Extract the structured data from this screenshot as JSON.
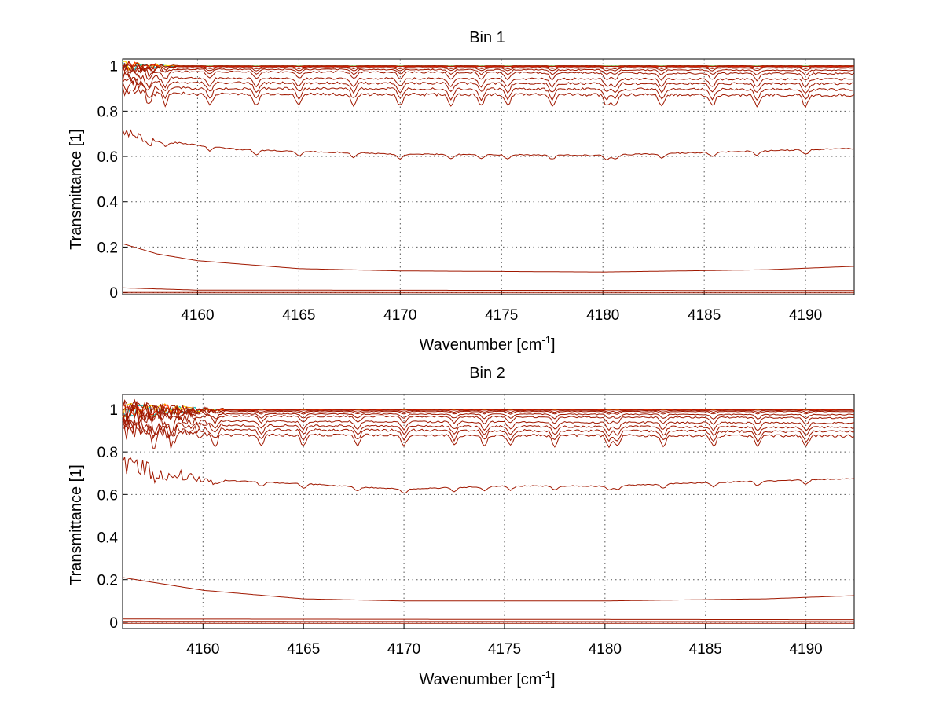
{
  "chart_data": [
    {
      "type": "line",
      "title": "Bin 1",
      "xlabel": "Wavenumber [cm",
      "xlabel_sup": "-1",
      "xlabel_end": "]",
      "ylabel": "Transmittance [1]",
      "xlim": [
        4156.3,
        4192.4
      ],
      "ylim": [
        -0.01,
        1.03
      ],
      "xticks": [
        4160,
        4165,
        4170,
        4175,
        4180,
        4185,
        4190
      ],
      "yticks": [
        0,
        0.2,
        0.4,
        0.6,
        0.8,
        1
      ],
      "ytick_labels": [
        "0",
        "0.2",
        "0.4",
        "0.6",
        "0.8",
        "1"
      ],
      "grid": true,
      "series_color": "#a01800",
      "accent_colors": [
        "#ff9900",
        "#00bfbf",
        "#ffd000",
        "#ff2000"
      ],
      "series": [
        {
          "base": [
            [
              4156.3,
              1.0
            ],
            [
              4192.4,
              1.0
            ]
          ],
          "dip": 0.004
        },
        {
          "base": [
            [
              4156.3,
              0.995
            ],
            [
              4192.4,
              0.995
            ]
          ],
          "dip": 0.008
        },
        {
          "base": [
            [
              4156.3,
              0.99
            ],
            [
              4192.4,
              0.99
            ]
          ],
          "dip": 0.012
        },
        {
          "base": [
            [
              4156.3,
              0.985
            ],
            [
              4192.4,
              0.98
            ]
          ],
          "dip": 0.02
        },
        {
          "base": [
            [
              4156.3,
              0.975
            ],
            [
              4192.4,
              0.965
            ]
          ],
          "dip": 0.03
        },
        {
          "base": [
            [
              4156.3,
              0.95
            ],
            [
              4160,
              0.945
            ],
            [
              4192.4,
              0.94
            ]
          ],
          "dip": 0.035
        },
        {
          "base": [
            [
              4156.3,
              0.93
            ],
            [
              4160,
              0.925
            ],
            [
              4192.4,
              0.92
            ]
          ],
          "dip": 0.04
        },
        {
          "base": [
            [
              4156.3,
              0.91
            ],
            [
              4160,
              0.9
            ],
            [
              4192.4,
              0.895
            ]
          ],
          "dip": 0.045
        },
        {
          "base": [
            [
              4156.3,
              0.89
            ],
            [
              4160,
              0.875
            ],
            [
              4192.4,
              0.87
            ]
          ],
          "dip": 0.05
        },
        {
          "base": [
            [
              4156.3,
              0.7
            ],
            [
              4158,
              0.67
            ],
            [
              4162,
              0.63
            ],
            [
              4170,
              0.61
            ],
            [
              4180,
              0.605
            ],
            [
              4188,
              0.625
            ],
            [
              4192.4,
              0.635
            ]
          ],
          "dip": 0.02
        },
        {
          "base": [
            [
              4156.3,
              0.215
            ],
            [
              4158,
              0.17
            ],
            [
              4160,
              0.14
            ],
            [
              4165,
              0.105
            ],
            [
              4170,
              0.095
            ],
            [
              4180,
              0.09
            ],
            [
              4188,
              0.1
            ],
            [
              4192.4,
              0.115
            ]
          ],
          "dip": 0
        },
        {
          "base": [
            [
              4156.3,
              0.02
            ],
            [
              4160,
              0.01
            ],
            [
              4192.4,
              0.008
            ]
          ],
          "dip": 0
        },
        {
          "base": [
            [
              4156.3,
              0.003
            ],
            [
              4192.4,
              0.002
            ]
          ],
          "dip": 0
        },
        {
          "base": [
            [
              4156.3,
              -0.002
            ],
            [
              4192.4,
              -0.002
            ]
          ],
          "dip": 0
        }
      ]
    },
    {
      "type": "line",
      "title": "Bin 2",
      "xlabel": "Wavenumber [cm",
      "xlabel_sup": "-1",
      "xlabel_end": "]",
      "ylabel": "Transmittance [1]",
      "xlim": [
        4156.0,
        4192.4
      ],
      "ylim": [
        -0.03,
        1.07
      ],
      "xticks": [
        4160,
        4165,
        4170,
        4175,
        4180,
        4185,
        4190
      ],
      "yticks": [
        0,
        0.2,
        0.4,
        0.6,
        0.8,
        1
      ],
      "ytick_labels": [
        "0",
        "0.2",
        "0.4",
        "0.6",
        "0.8",
        "1"
      ],
      "grid": true,
      "series_color": "#a01800",
      "accent_colors": [
        "#ff9900",
        "#00bfbf",
        "#ffd000",
        "#ff2000"
      ],
      "series": [
        {
          "base": [
            [
              4156.0,
              1.0
            ],
            [
              4192.4,
              1.0
            ]
          ],
          "dip": 0.004
        },
        {
          "base": [
            [
              4156.0,
              0.995
            ],
            [
              4192.4,
              0.995
            ]
          ],
          "dip": 0.008
        },
        {
          "base": [
            [
              4156.0,
              0.99
            ],
            [
              4192.4,
              0.99
            ]
          ],
          "dip": 0.012
        },
        {
          "base": [
            [
              4156.0,
              0.98
            ],
            [
              4192.4,
              0.975
            ]
          ],
          "dip": 0.02
        },
        {
          "base": [
            [
              4156.0,
              0.97
            ],
            [
              4192.4,
              0.96
            ]
          ],
          "dip": 0.03
        },
        {
          "base": [
            [
              4156.0,
              0.95
            ],
            [
              4160,
              0.945
            ],
            [
              4192.4,
              0.935
            ]
          ],
          "dip": 0.035
        },
        {
          "base": [
            [
              4156.0,
              0.93
            ],
            [
              4160,
              0.925
            ],
            [
              4192.4,
              0.915
            ]
          ],
          "dip": 0.04
        },
        {
          "base": [
            [
              4156.0,
              0.91
            ],
            [
              4160,
              0.905
            ],
            [
              4192.4,
              0.895
            ]
          ],
          "dip": 0.045
        },
        {
          "base": [
            [
              4156.0,
              0.9
            ],
            [
              4160,
              0.88
            ],
            [
              4192.4,
              0.875
            ]
          ],
          "dip": 0.05
        },
        {
          "base": [
            [
              4156.0,
              0.72
            ],
            [
              4156.6,
              0.76
            ],
            [
              4157.2,
              0.71
            ],
            [
              4160,
              0.67
            ],
            [
              4165,
              0.65
            ],
            [
              4170,
              0.625
            ],
            [
              4175,
              0.64
            ],
            [
              4180,
              0.64
            ],
            [
              4185,
              0.655
            ],
            [
              4192.4,
              0.675
            ]
          ],
          "dip": 0.02
        },
        {
          "base": [
            [
              4156.0,
              0.21
            ],
            [
              4158,
              0.18
            ],
            [
              4160,
              0.15
            ],
            [
              4165,
              0.11
            ],
            [
              4170,
              0.1
            ],
            [
              4180,
              0.1
            ],
            [
              4188,
              0.11
            ],
            [
              4192.4,
              0.125
            ]
          ],
          "dip": 0
        },
        {
          "base": [
            [
              4156.0,
              0.015
            ],
            [
              4192.4,
              0.012
            ]
          ],
          "dip": 0
        },
        {
          "base": [
            [
              4156.0,
              0.004
            ],
            [
              4192.4,
              0.003
            ]
          ],
          "dip": 0
        },
        {
          "base": [
            [
              4156.0,
              -0.005
            ],
            [
              4192.4,
              -0.005
            ]
          ],
          "dip": 0
        }
      ]
    }
  ]
}
